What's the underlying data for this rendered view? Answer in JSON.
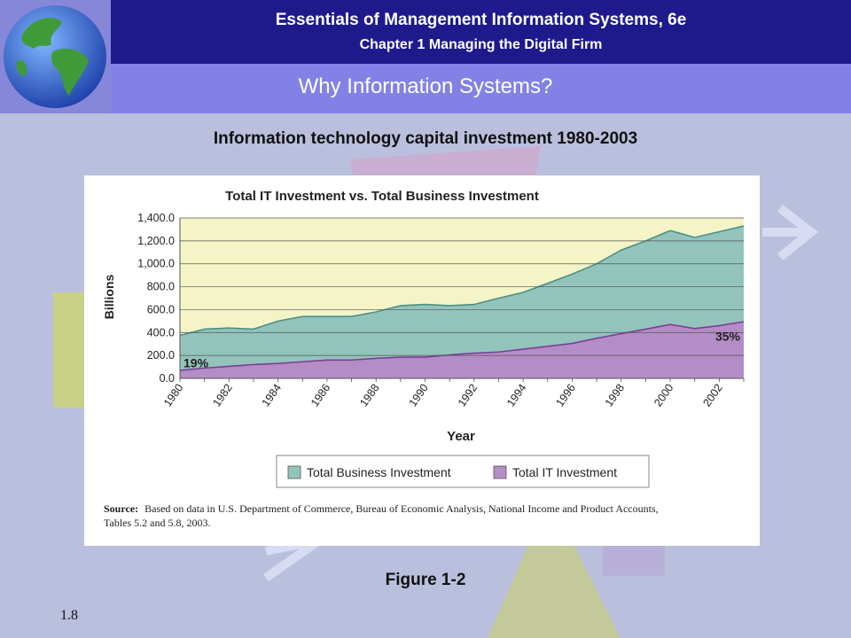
{
  "header": {
    "title": "Essentials of Management Information Systems, 6e",
    "subtitle": "Chapter 1 Managing the Digital Firm",
    "slide_title": "Why Information Systems?"
  },
  "chart_heading": "Information technology capital investment 1980-2003",
  "figure_caption": "Figure 1-2",
  "slide_number": "1.8",
  "colors": {
    "business": "#93c4bc",
    "it": "#b48cc6",
    "plot_bg": "#f4f4c6",
    "header": "#1f1a8c",
    "subheader": "#8282e6"
  },
  "chart_data": {
    "type": "area",
    "title": "Total IT Investment vs. Total Business Investment",
    "xlabel": "Year",
    "ylabel": "Billions",
    "x": [
      1980,
      1981,
      1982,
      1983,
      1984,
      1985,
      1986,
      1987,
      1988,
      1989,
      1990,
      1991,
      1992,
      1993,
      1994,
      1995,
      1996,
      1997,
      1998,
      1999,
      2000,
      2001,
      2002,
      2003
    ],
    "xticks": [
      "1980",
      "1982",
      "1984",
      "1986",
      "1988",
      "1990",
      "1992",
      "1994",
      "1996",
      "1998",
      "2000",
      "2002"
    ],
    "yticks": [
      "0.0",
      "200.0",
      "400.0",
      "600.0",
      "800.0",
      "1,000.0",
      "1,200.0",
      "1,400.0"
    ],
    "ylim": [
      0,
      1400
    ],
    "series": [
      {
        "name": "Total Business Investment",
        "values": [
          375,
          430,
          440,
          430,
          500,
          540,
          540,
          540,
          580,
          635,
          645,
          635,
          645,
          700,
          750,
          830,
          910,
          1000,
          1120,
          1200,
          1290,
          1230,
          1280,
          1330
        ]
      },
      {
        "name": "Total IT Investment",
        "values": [
          70,
          90,
          105,
          120,
          130,
          145,
          160,
          160,
          175,
          185,
          185,
          205,
          220,
          230,
          255,
          280,
          305,
          350,
          390,
          430,
          470,
          435,
          460,
          495
        ]
      }
    ],
    "annotations": [
      "19%",
      "35%"
    ],
    "legend": "bottom",
    "grid": true,
    "source_label": "Source:",
    "source_text": "Based on data in U.S. Department of Commerce, Bureau of Economic Analysis, National Income and Product Accounts,",
    "source_text2": "Tables 5.2 and 5.8, 2003."
  }
}
